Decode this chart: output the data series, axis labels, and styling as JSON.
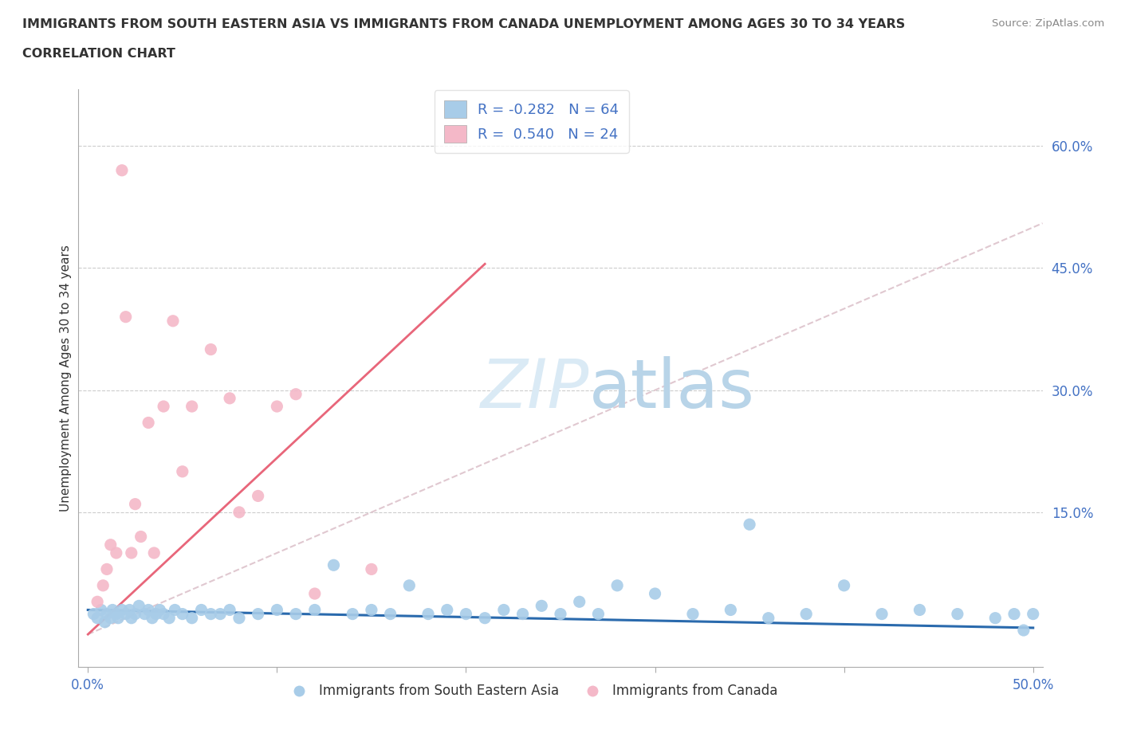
{
  "title_line1": "IMMIGRANTS FROM SOUTH EASTERN ASIA VS IMMIGRANTS FROM CANADA UNEMPLOYMENT AMONG AGES 30 TO 34 YEARS",
  "title_line2": "CORRELATION CHART",
  "source": "Source: ZipAtlas.com",
  "ylabel": "Unemployment Among Ages 30 to 34 years",
  "xlim": [
    -0.005,
    0.505
  ],
  "ylim": [
    -0.04,
    0.67
  ],
  "r_blue": -0.282,
  "n_blue": 64,
  "r_pink": 0.54,
  "n_pink": 24,
  "blue_color": "#a8cce8",
  "pink_color": "#f4b8c8",
  "blue_line_color": "#2a6aad",
  "pink_line_color": "#e8667a",
  "diagonal_color": "#e0c8d0",
  "background_color": "#ffffff",
  "grid_color": "#cccccc",
  "watermark_color": "#daeaf5",
  "blue_line_x0": 0.0,
  "blue_line_x1": 0.5,
  "blue_line_y0": 0.03,
  "blue_line_y1": 0.008,
  "pink_line_x0": 0.0,
  "pink_line_x1": 0.21,
  "pink_line_y0": 0.0,
  "pink_line_y1": 0.455,
  "blue_x": [
    0.003,
    0.005,
    0.007,
    0.009,
    0.01,
    0.012,
    0.013,
    0.015,
    0.016,
    0.018,
    0.02,
    0.022,
    0.023,
    0.025,
    0.027,
    0.03,
    0.032,
    0.034,
    0.036,
    0.038,
    0.04,
    0.043,
    0.046,
    0.05,
    0.055,
    0.06,
    0.065,
    0.07,
    0.075,
    0.08,
    0.09,
    0.1,
    0.11,
    0.12,
    0.13,
    0.14,
    0.15,
    0.16,
    0.17,
    0.18,
    0.19,
    0.2,
    0.21,
    0.22,
    0.23,
    0.24,
    0.25,
    0.26,
    0.27,
    0.28,
    0.3,
    0.32,
    0.34,
    0.36,
    0.38,
    0.4,
    0.42,
    0.44,
    0.46,
    0.48,
    0.49,
    0.495,
    0.5,
    0.35
  ],
  "blue_y": [
    0.025,
    0.02,
    0.03,
    0.015,
    0.025,
    0.02,
    0.03,
    0.025,
    0.02,
    0.03,
    0.025,
    0.03,
    0.02,
    0.025,
    0.035,
    0.025,
    0.03,
    0.02,
    0.025,
    0.03,
    0.025,
    0.02,
    0.03,
    0.025,
    0.02,
    0.03,
    0.025,
    0.025,
    0.03,
    0.02,
    0.025,
    0.03,
    0.025,
    0.03,
    0.085,
    0.025,
    0.03,
    0.025,
    0.06,
    0.025,
    0.03,
    0.025,
    0.02,
    0.03,
    0.025,
    0.035,
    0.025,
    0.04,
    0.025,
    0.06,
    0.05,
    0.025,
    0.03,
    0.02,
    0.025,
    0.06,
    0.025,
    0.03,
    0.025,
    0.02,
    0.025,
    0.005,
    0.025,
    0.135
  ],
  "pink_x": [
    0.005,
    0.008,
    0.01,
    0.012,
    0.015,
    0.018,
    0.02,
    0.023,
    0.025,
    0.028,
    0.032,
    0.035,
    0.04,
    0.045,
    0.05,
    0.055,
    0.065,
    0.075,
    0.09,
    0.1,
    0.11,
    0.15,
    0.08,
    0.12
  ],
  "pink_y": [
    0.04,
    0.06,
    0.08,
    0.11,
    0.1,
    0.57,
    0.39,
    0.1,
    0.16,
    0.12,
    0.26,
    0.1,
    0.28,
    0.385,
    0.2,
    0.28,
    0.35,
    0.29,
    0.17,
    0.28,
    0.295,
    0.08,
    0.15,
    0.05
  ]
}
